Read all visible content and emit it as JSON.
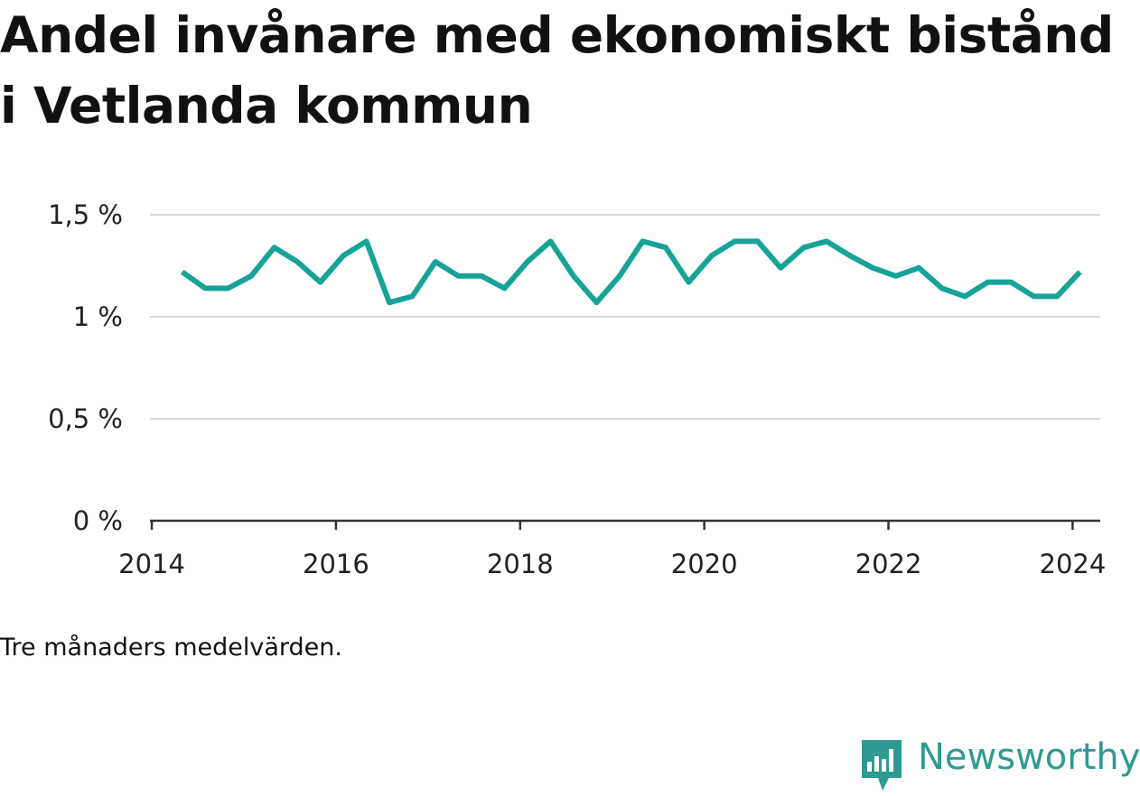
{
  "title": "Andel invånare med ekonomiskt bistånd i Vetlanda kommun",
  "note": "Tre månaders medelvärden.",
  "brand": {
    "name": "Newsworthy",
    "icon": "newsworthy-logo-icon",
    "color": "#2e9a93"
  },
  "colors": {
    "line": "#17a398",
    "grid": "#d9d9d9",
    "axis": "#333333",
    "text": "#111111"
  },
  "chart_data": {
    "type": "line",
    "title": "Andel invånare med ekonomiskt bistånd i Vetlanda kommun",
    "xlabel": "",
    "ylabel": "",
    "grid": true,
    "legend": "none",
    "xlim": [
      2013.98,
      2024.3
    ],
    "ylim": [
      0,
      1.5
    ],
    "x_ticks": [
      2014,
      2016,
      2018,
      2020,
      2022,
      2024
    ],
    "x_tick_labels": [
      "2014",
      "2016",
      "2018",
      "2020",
      "2022",
      "2024"
    ],
    "y_ticks": [
      0,
      0.5,
      1,
      1.5
    ],
    "y_tick_labels": [
      "0 %",
      "0,5 %",
      "1 %",
      "1,5 %"
    ],
    "series": [
      {
        "name": "",
        "x": [
          2014.33,
          2014.58,
          2014.83,
          2015.08,
          2015.33,
          2015.58,
          2015.83,
          2016.08,
          2016.33,
          2016.58,
          2016.83,
          2017.08,
          2017.33,
          2017.58,
          2017.83,
          2018.08,
          2018.33,
          2018.58,
          2018.83,
          2019.08,
          2019.33,
          2019.58,
          2019.83,
          2020.08,
          2020.33,
          2020.58,
          2020.83,
          2021.08,
          2021.33,
          2021.58,
          2021.83,
          2022.08,
          2022.33,
          2022.58,
          2022.83,
          2023.08,
          2023.33,
          2023.58,
          2023.83,
          2024.08
        ],
        "values": [
          1.22,
          1.14,
          1.14,
          1.2,
          1.34,
          1.27,
          1.17,
          1.3,
          1.37,
          1.07,
          1.1,
          1.27,
          1.2,
          1.2,
          1.14,
          1.27,
          1.37,
          1.2,
          1.07,
          1.2,
          1.37,
          1.34,
          1.17,
          1.3,
          1.37,
          1.37,
          1.24,
          1.34,
          1.37,
          1.3,
          1.24,
          1.2,
          1.24,
          1.14,
          1.1,
          1.17,
          1.17,
          1.1,
          1.1,
          1.22
        ]
      }
    ]
  }
}
